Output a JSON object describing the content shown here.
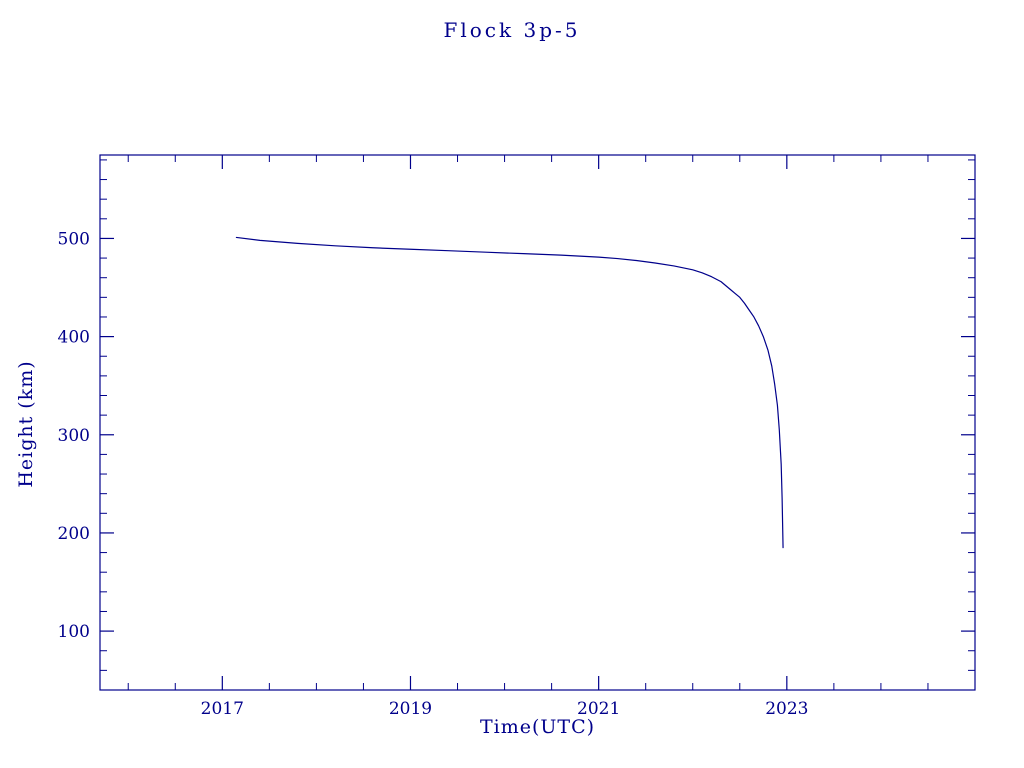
{
  "chart_data": {
    "type": "line",
    "title": "Flock 3p-5",
    "xlabel": "Time(UTC)",
    "ylabel": "Height (km)",
    "xlim": [
      2015.7,
      2025.0
    ],
    "ylim": [
      40,
      585
    ],
    "xticks": [
      2017,
      2019,
      2021,
      2023
    ],
    "yticks": [
      100,
      200,
      300,
      400,
      500
    ],
    "x_minor_step": 0.5,
    "y_minor_step": 20,
    "axis_color": "#00008b",
    "line_color": "#00008b",
    "background_color": "#ffffff",
    "series": [
      {
        "name": "Flock 3p-5",
        "x": [
          2017.15,
          2017.4,
          2017.8,
          2018.2,
          2018.6,
          2019.0,
          2019.4,
          2019.8,
          2020.2,
          2020.6,
          2021.0,
          2021.2,
          2021.4,
          2021.6,
          2021.8,
          2022.0,
          2022.1,
          2022.2,
          2022.3,
          2022.4,
          2022.45,
          2022.5,
          2022.55,
          2022.6,
          2022.65,
          2022.7,
          2022.75,
          2022.8,
          2022.84,
          2022.87,
          2022.9,
          2022.92,
          2022.94,
          2022.95,
          2022.955,
          2022.96
        ],
        "y": [
          501,
          498,
          495,
          492.5,
          490.5,
          489,
          487.5,
          486,
          484.5,
          483,
          481,
          479.5,
          477.5,
          475,
          472,
          468,
          465,
          461,
          456,
          448,
          444,
          440,
          434,
          427,
          420,
          411,
          400,
          386,
          370,
          352,
          330,
          305,
          270,
          235,
          210,
          185
        ]
      }
    ]
  }
}
